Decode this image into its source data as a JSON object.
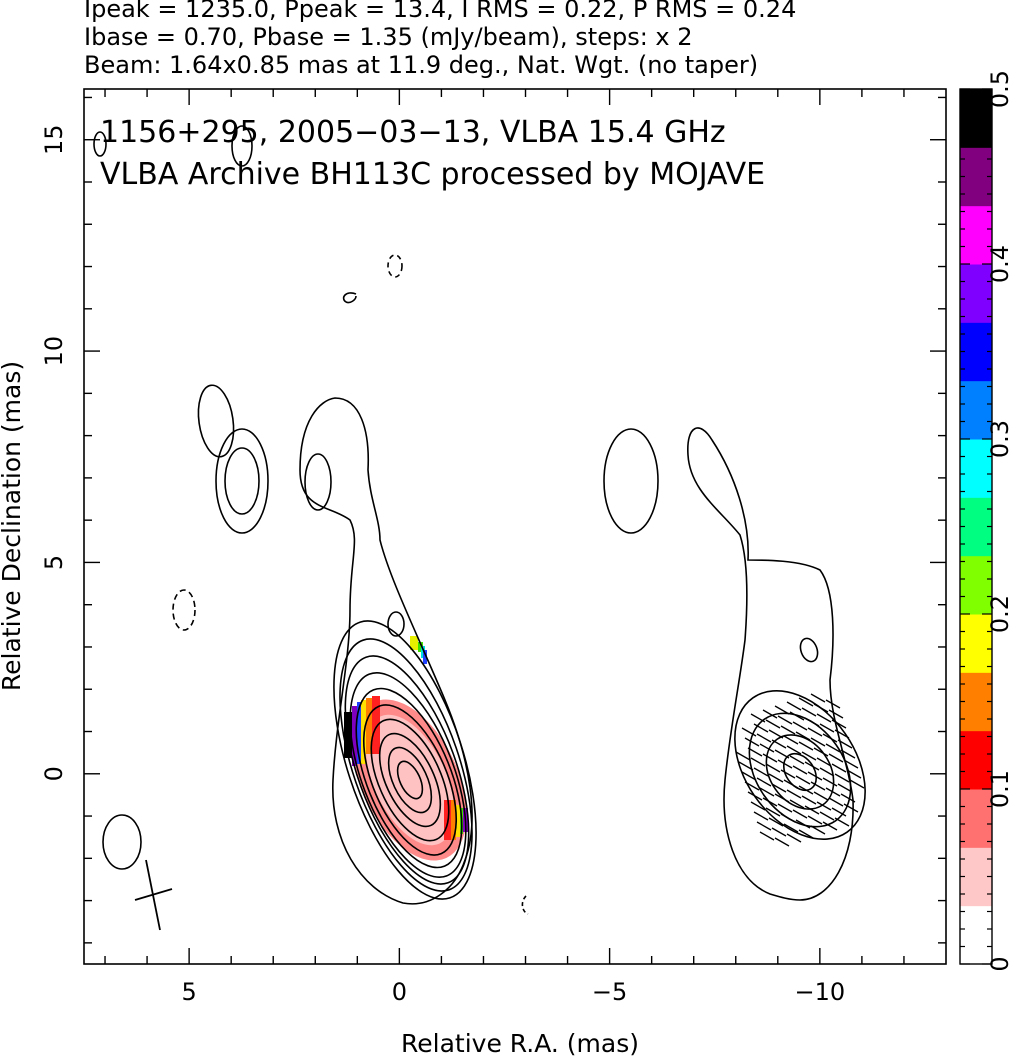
{
  "header": {
    "line1": "Ipeak = 1235.0, Ppeak = 13.4, I RMS = 0.22, P RMS = 0.24",
    "line2": "Ibase = 0.70, Pbase = 1.35 (mJy/beam), steps: x 2",
    "line3": "Beam: 1.64x0.85 mas at 11.9 deg., Nat. Wgt. (no taper)"
  },
  "chart_data": {
    "type": "heatmap",
    "annotations": [
      "1156+295, 2005−03−13, VLBA 15.4 GHz",
      "VLBA Archive BH113C processed by MOJAVE"
    ],
    "xlabel": "Relative R.A. (mas)",
    "ylabel": "Relative Declination (mas)",
    "xlim": [
      7.5,
      -13
    ],
    "ylim": [
      -4.5,
      16.2
    ],
    "x_ticks": [
      {
        "value": 5,
        "label": "5"
      },
      {
        "value": 0,
        "label": "0"
      },
      {
        "value": -5,
        "label": "−5"
      },
      {
        "value": -10,
        "label": "−10"
      }
    ],
    "y_ticks": [
      {
        "value": 0,
        "label": "0"
      },
      {
        "value": 5,
        "label": "5"
      },
      {
        "value": 10,
        "label": "10"
      },
      {
        "value": 15,
        "label": "15"
      }
    ],
    "colorbar": {
      "range": [
        0,
        0.5
      ],
      "ticks": [
        {
          "value": 0,
          "label": "0"
        },
        {
          "value": 0.1,
          "label": "0.1"
        },
        {
          "value": 0.2,
          "label": "0.2"
        },
        {
          "value": 0.3,
          "label": "0.3"
        },
        {
          "value": 0.4,
          "label": "0.4"
        },
        {
          "value": 0.5,
          "label": "0.5"
        }
      ],
      "colors": [
        "#ffffff",
        "#ffc8c8",
        "#ff7070",
        "#ff0000",
        "#ff8000",
        "#ffff00",
        "#80ff00",
        "#00ff80",
        "#00ffff",
        "#0080ff",
        "#0000ff",
        "#8000ff",
        "#ff00ff",
        "#800080",
        "#000000"
      ]
    },
    "contour_levels_mjy": [
      0.7,
      1.4,
      2.8,
      5.6,
      11.2,
      22.4,
      44.8,
      89.6,
      179.2,
      358.4,
      716.8
    ],
    "beam": {
      "major": 1.64,
      "minor": 0.85,
      "pa_deg": 11.9
    },
    "core_ra": 0.0,
    "core_dec": 0.0
  }
}
